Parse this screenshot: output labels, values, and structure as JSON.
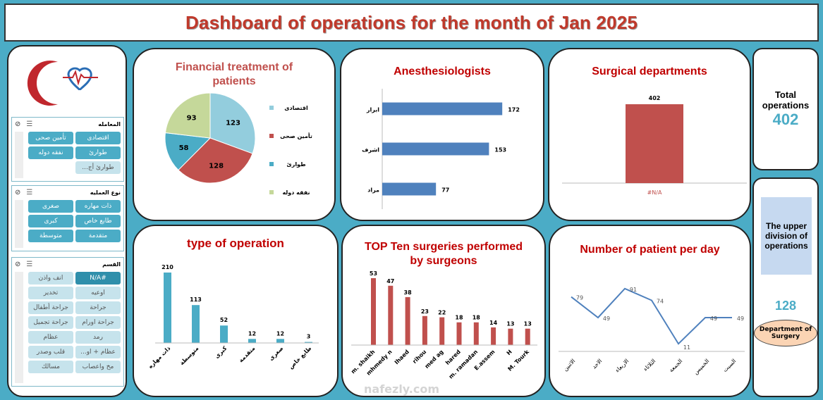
{
  "title": "Dashboard of operations for the month of Jan 2025",
  "slicers": {
    "s1": {
      "title": "المعامله",
      "items": [
        {
          "label": "اقتصادى",
          "state": "on"
        },
        {
          "label": "تأمين صحى",
          "state": "on"
        },
        {
          "label": "طوارئ",
          "state": "on"
        },
        {
          "label": "نفقه دوله",
          "state": "on"
        },
        {
          "label": "طوارئ أج...",
          "state": "off"
        }
      ]
    },
    "s2": {
      "title": "نوع العمليه",
      "items": [
        {
          "label": "ذات مهاره",
          "state": "on"
        },
        {
          "label": "صغرى",
          "state": "on"
        },
        {
          "label": "طابع خاص",
          "state": "on"
        },
        {
          "label": "كبرى",
          "state": "on"
        },
        {
          "label": "متقدمة",
          "state": "on"
        },
        {
          "label": "متوسطة",
          "state": "on"
        }
      ]
    },
    "s3": {
      "title": "القسم",
      "items": [
        {
          "label": "#N/A",
          "state": "sel"
        },
        {
          "label": "انف واذن",
          "state": "off"
        },
        {
          "label": "اوعيه",
          "state": "off"
        },
        {
          "label": "تخدير",
          "state": "off"
        },
        {
          "label": "جراحة",
          "state": "off"
        },
        {
          "label": "جراحة أطفال",
          "state": "off"
        },
        {
          "label": "جراحة اورام",
          "state": "off"
        },
        {
          "label": "جراحة تجميل",
          "state": "off"
        },
        {
          "label": "رمد",
          "state": "off"
        },
        {
          "label": "عظام",
          "state": "off"
        },
        {
          "label": "عظام + او...",
          "state": "off"
        },
        {
          "label": "قلب وصدر",
          "state": "off"
        },
        {
          "label": "مخ واعصاب",
          "state": "off"
        },
        {
          "label": "مسالك",
          "state": "off"
        }
      ]
    }
  },
  "kpi": {
    "total_label": "Total operations",
    "total_value": "402",
    "upper_label": "The upper division of operations",
    "dept_value": "128",
    "dept_label": "Department of Surgery"
  },
  "watermark": "nafezly.com",
  "colors": {
    "teal": "#4bacc6",
    "red": "#c0504d",
    "blue": "#4f81bd",
    "green": "#c5d89a",
    "title_red": "#c00000"
  },
  "chart_data": [
    {
      "id": "financial",
      "type": "pie",
      "title": "Financial treatment of patients",
      "categories": [
        "اقتصادى",
        "تأمين صحى",
        "طوارئ",
        "نفقه دوله"
      ],
      "values": [
        123,
        128,
        58,
        93
      ],
      "colors": [
        "#93cddd",
        "#c0504d",
        "#4bacc6",
        "#c5d89a"
      ],
      "legend": "right"
    },
    {
      "id": "anesth",
      "type": "bar",
      "orientation": "horizontal",
      "title": "Anesthesiologists",
      "categories": [
        "ابرار",
        "اشرف",
        "مراد"
      ],
      "values": [
        172,
        153,
        77
      ],
      "color": "#4f81bd"
    },
    {
      "id": "surgical",
      "type": "bar",
      "title": "Surgical departments",
      "categories": [
        "#N/A"
      ],
      "values": [
        402
      ],
      "color": "#c0504d"
    },
    {
      "id": "optype",
      "type": "bar",
      "title": "type of operation",
      "categories": [
        "ذات مهاره",
        "متوسطة",
        "كبرى",
        "متقدمة",
        "صغرى",
        "طابع خاص"
      ],
      "values": [
        210,
        113,
        52,
        12,
        12,
        3
      ],
      "color": "#4bacc6"
    },
    {
      "id": "top10",
      "type": "bar",
      "title": "TOP Ten surgeries performed by surgeons",
      "categories": [
        "m. shaikh",
        "mhmedy n",
        "Ihaed",
        "rihou",
        "med ag",
        "hared",
        "m. ramadan",
        "E.assem",
        "H",
        "M. Tourk"
      ],
      "values": [
        53,
        47,
        38,
        23,
        22,
        18,
        18,
        14,
        13,
        13
      ],
      "color": "#c0504d"
    },
    {
      "id": "perday",
      "type": "line",
      "title": "Number of patient per day",
      "categories": [
        "الاثنين",
        "الاحد",
        "الاربعاء",
        "الثلاثاء",
        "الجمعة",
        "الخميس",
        "السبت"
      ],
      "values": [
        79,
        49,
        91,
        74,
        11,
        49,
        49
      ],
      "color": "#4f81bd"
    }
  ]
}
